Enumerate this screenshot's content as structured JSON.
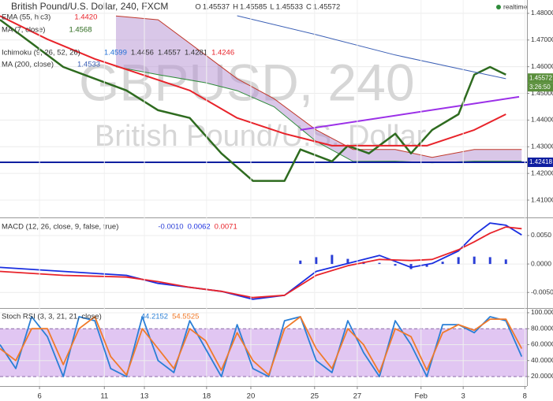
{
  "chart_data": [
    {
      "type": "line",
      "title": "British Pound/U.S. Dollar, 240, FXCM",
      "ohlc": {
        "labels": [
          "O",
          "H",
          "L",
          "C"
        ],
        "values": [
          1.45537,
          1.45585,
          1.45533,
          1.45572
        ]
      },
      "status": "realtime",
      "watermark": [
        "GBPUSD, 240",
        "British Pound/U.S. Dollar"
      ],
      "xlim": [
        0,
        100
      ],
      "ylim": [
        1.4038,
        1.485
      ],
      "yticks": [
        {
          "value": 1.48,
          "label": "1.48000"
        },
        {
          "value": 1.47,
          "label": "1.47000"
        },
        {
          "value": 1.46,
          "label": "1.46000"
        },
        {
          "value": 1.45,
          "label": "1.45000"
        },
        {
          "value": 1.44,
          "label": "1.44000"
        },
        {
          "value": 1.43,
          "label": "1.43000"
        },
        {
          "value": 1.42,
          "label": "1.42000"
        },
        {
          "value": 1.41,
          "label": "1.41000"
        }
      ],
      "series": [
        {
          "name": "MA (7, close)",
          "color": "#2e6b1f",
          "last": [
            1.4568
          ],
          "last_labels": [
            "1.4568"
          ],
          "x": [
            0,
            6,
            12,
            18,
            24,
            30,
            36,
            42,
            48,
            54,
            57,
            63,
            66,
            70,
            75,
            78,
            82,
            87,
            90,
            93,
            96
          ],
          "values": [
            1.4776,
            1.4688,
            1.4599,
            1.4555,
            1.4511,
            1.4437,
            1.4408,
            1.4275,
            1.4172,
            1.4172,
            1.429,
            1.4245,
            1.4304,
            1.4275,
            1.4349,
            1.4275,
            1.4363,
            1.4422,
            1.457,
            1.4599,
            1.457
          ]
        },
        {
          "name": "EMA (55, hlc3)",
          "color": "#e8232a",
          "last": [
            1.442
          ],
          "last_labels": [
            "1.4420"
          ],
          "x": [
            0,
            9,
            18,
            27,
            36,
            45,
            54,
            63,
            72,
            81,
            90,
            96
          ],
          "values": [
            1.479,
            1.4703,
            1.4629,
            1.457,
            1.4511,
            1.4408,
            1.4349,
            1.4304,
            1.4304,
            1.4304,
            1.4363,
            1.4422
          ]
        },
        {
          "name": "MA (200, close)",
          "color": "#3b5fb5",
          "last": [
            1.4533
          ],
          "last_labels": [
            "1.4533"
          ],
          "x": [
            45,
            60,
            75,
            90,
            96
          ],
          "values": [
            1.4791,
            1.472,
            1.4644,
            1.458,
            1.4555
          ]
        }
      ],
      "cloud": {
        "name": "Ichimoku (9, 26, 52, 26)",
        "fill": "#b48fd1",
        "colors": [
          "#c0392b",
          "#2e8b3a"
        ],
        "last": [
          1.4599,
          1.4456,
          1.4557,
          1.4281,
          1.4246
        ],
        "last_labels": [
          "1.4599",
          "1.4456",
          "1.4557",
          "1.4281",
          "1.4246"
        ],
        "last_colors": [
          "#1f6fd6",
          "#333333",
          "#333333",
          "#333333",
          "#e8232a"
        ],
        "x": [
          22,
          30,
          39,
          45,
          52,
          60,
          67,
          75,
          82,
          90,
          99
        ],
        "span_a": [
          1.479,
          1.4776,
          1.4644,
          1.4555,
          1.448,
          1.4363,
          1.429,
          1.429,
          1.426,
          1.429,
          1.429
        ],
        "span_b": [
          1.46,
          1.457,
          1.454,
          1.451,
          1.445,
          1.432,
          1.4245,
          1.4246,
          1.424,
          1.4246,
          1.4246
        ]
      },
      "hline": {
        "value": 1.42418,
        "color": "#0f1fa0"
      },
      "trendline": {
        "x": [
          57,
          98.5
        ],
        "values": [
          1.4363,
          1.4487
        ],
        "color": "#9b30e8"
      },
      "last_price": {
        "value": 1.45572,
        "color": "#5a8f3c",
        "countdown": "3:26:50"
      }
    },
    {
      "type": "line",
      "title": "MACD (12, 26, close, 9, false, true)",
      "xlim": [
        0,
        100
      ],
      "ylim": [
        -0.0076,
        0.0079
      ],
      "yticks": [
        {
          "value": 0.005,
          "label": "0.0050"
        },
        {
          "value": 0,
          "label": "0.0000"
        },
        {
          "value": -0.005,
          "label": "-0.0050"
        }
      ],
      "histogram": {
        "color": "#2b3fd6",
        "last": [
          -0.001
        ],
        "last_labels": [
          "-0.0010"
        ],
        "x": [
          57,
          60,
          63,
          66,
          69,
          72,
          75,
          78,
          81,
          84,
          87,
          90,
          93,
          96
        ],
        "values": [
          0.0006,
          0.0012,
          0.0016,
          0.0009,
          0.0004,
          0.0002,
          -0.0003,
          -0.0009,
          -0.0005,
          0.0004,
          0.0012,
          0.0013,
          0.0012,
          0.0008
        ]
      },
      "series": [
        {
          "color": "#1a2fe0",
          "last": [
            0.0062
          ],
          "last_labels": [
            "0.0062"
          ],
          "x": [
            0,
            12,
            24,
            30,
            36,
            42,
            48,
            54,
            60,
            66,
            72,
            78,
            82,
            87,
            90,
            93,
            96,
            99
          ],
          "values": [
            -0.0006,
            -0.0013,
            -0.002,
            -0.0034,
            -0.0041,
            -0.0048,
            -0.0062,
            -0.0055,
            -0.0013,
            0.0001,
            0.0015,
            -0.0006,
            0.0001,
            0.0023,
            0.0051,
            0.0072,
            0.0068,
            0.0051
          ]
        },
        {
          "color": "#e8232a",
          "last": [
            0.0071
          ],
          "last_labels": [
            "0.0071"
          ],
          "x": [
            0,
            12,
            24,
            30,
            36,
            42,
            48,
            54,
            60,
            66,
            72,
            78,
            82,
            87,
            90,
            93,
            96,
            99
          ],
          "values": [
            -0.0013,
            -0.002,
            -0.0023,
            -0.0031,
            -0.0041,
            -0.0048,
            -0.0059,
            -0.0055,
            -0.002,
            -0.0003,
            0.0008,
            0.0006,
            0.0008,
            0.0025,
            0.0039,
            0.0054,
            0.0065,
            0.0062
          ]
        }
      ]
    },
    {
      "type": "line",
      "title": "Stoch RSI (3, 3, 21, 21, close)",
      "xlim": [
        0,
        100
      ],
      "ylim": [
        8.1,
        104.9
      ],
      "yticks": [
        {
          "value": 100,
          "label": "100.0000"
        },
        {
          "value": 80,
          "label": "80.0000"
        },
        {
          "value": 60,
          "label": "60.0000"
        },
        {
          "value": 40,
          "label": "40.0000"
        },
        {
          "value": 20,
          "label": "20.0000"
        }
      ],
      "band": [
        80,
        20
      ],
      "band_color": "#d9b8ef",
      "xticks": [
        {
          "value": 7.5,
          "label": "6"
        },
        {
          "value": 19.8,
          "label": "11"
        },
        {
          "value": 27.4,
          "label": "13"
        },
        {
          "value": 39.2,
          "label": "18"
        },
        {
          "value": 47.6,
          "label": "20"
        },
        {
          "value": 59.7,
          "label": "25"
        },
        {
          "value": 67.8,
          "label": "27"
        },
        {
          "value": 79.9,
          "label": "Feb"
        },
        {
          "value": 87.9,
          "label": "3"
        },
        {
          "value": 99.6,
          "label": "8"
        }
      ],
      "series": [
        {
          "color": "#2a7fd6",
          "last": [
            44.2152
          ],
          "x": [
            0,
            3,
            6,
            9,
            12,
            15,
            18,
            21,
            24,
            27,
            30,
            33,
            36,
            39,
            42,
            45,
            48,
            51,
            54,
            57,
            60,
            63,
            66,
            69,
            72,
            75,
            78,
            81,
            84,
            87,
            90,
            93,
            96,
            99
          ],
          "values": [
            60,
            30,
            95,
            70,
            20,
            95,
            90,
            30,
            20,
            95,
            40,
            25,
            90,
            55,
            20,
            85,
            30,
            20,
            90,
            95,
            40,
            25,
            90,
            50,
            20,
            90,
            60,
            20,
            85,
            85,
            75,
            95,
            90,
            45
          ]
        },
        {
          "color": "#f07a2a",
          "last": [
            54.5525
          ],
          "x": [
            0,
            3,
            6,
            9,
            12,
            15,
            18,
            21,
            24,
            27,
            30,
            33,
            36,
            39,
            42,
            45,
            48,
            51,
            54,
            57,
            60,
            63,
            66,
            69,
            72,
            75,
            78,
            81,
            84,
            87,
            90,
            93,
            96,
            99
          ],
          "values": [
            55,
            40,
            80,
            80,
            35,
            80,
            95,
            45,
            22,
            80,
            55,
            30,
            80,
            65,
            28,
            75,
            40,
            22,
            80,
            95,
            55,
            30,
            80,
            60,
            25,
            80,
            70,
            28,
            75,
            85,
            78,
            92,
            92,
            55
          ]
        }
      ]
    }
  ]
}
